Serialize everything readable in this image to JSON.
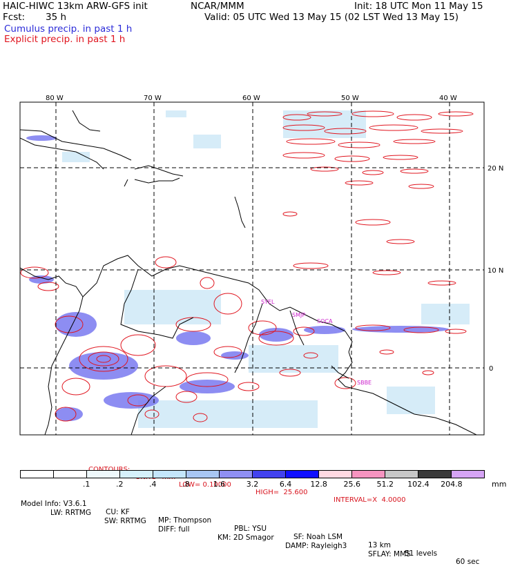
{
  "header": {
    "title": "HAIC-HIWC 13km ARW-GFS init",
    "org": "NCAR/MMM",
    "init": "Init: 18 UTC Mon 11 May 15",
    "fcst_label": "Fcst:",
    "fcst_value": "35 h",
    "valid": "Valid: 05 UTC Wed 13 May 15 (02 LST Wed 13 May 15)",
    "cumulus": "Cumulus precip. in past 1 h",
    "explicit": "Explicit precip. in past 1 h"
  },
  "map": {
    "lon_labels": [
      "80 W",
      "70 W",
      "60 W",
      "50 W",
      "40 W"
    ],
    "lat_labels": [
      "20 N",
      "10 N",
      "0"
    ],
    "stations": [
      "SYEL",
      "SMJP",
      "SOCA",
      "SBBE"
    ],
    "colors": {
      "explicit": "#e0141e",
      "cumulus": "#3a3ae8",
      "station": "#cc22cc",
      "coast": "#000000"
    }
  },
  "contours": {
    "label": "CONTOURS:",
    "units": "UNITS=mm",
    "low": "LOW= 0.10000",
    "high": "HIGH=  25.600",
    "interval": "INTERVAL=X  4.0000"
  },
  "colorbar": {
    "ticks": [
      ".1",
      ".2",
      ".4",
      ".8",
      "1.6",
      "3.2",
      "6.4",
      "12.8",
      "25.6",
      "51.2",
      "102.4",
      "204.8"
    ],
    "unit": "mm",
    "colors": [
      "#ffffff",
      "#ffffff",
      "#eef8fb",
      "#d6f1fb",
      "#c4e6fb",
      "#a8c6f3",
      "#8f8ff3",
      "#4242ee",
      "#1010ff",
      "#ffd9e2",
      "#f694c0",
      "#c7c7c7",
      "#3a3a3a",
      "#d6a4f5"
    ]
  },
  "model_info": {
    "line1": [
      "Model Info: V3.6.1",
      "CU: KF",
      "MP: Thompson",
      "PBL: YSU",
      "SF: Noah LSM",
      "13 km",
      "51 levels",
      "60 sec"
    ],
    "line2": [
      "LW: RRTMG",
      "SW: RRTMG",
      "DIFF: full",
      "KM: 2D Smagor",
      "DAMP: Rayleigh3",
      "SFLAY: MM5"
    ]
  }
}
